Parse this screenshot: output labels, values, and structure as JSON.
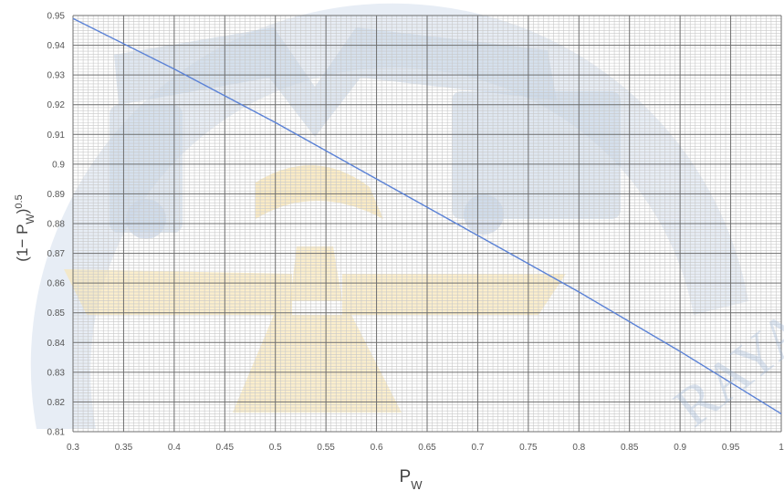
{
  "chart_data": {
    "type": "line",
    "title": "",
    "xlabel": {
      "base": "P",
      "sub": "W"
    },
    "ylabel": {
      "pre": "(1− P",
      "sub": "W",
      "post": ")",
      "sup": "0.5"
    },
    "xlim": [
      0.3,
      1.0
    ],
    "ylim": [
      0.81,
      0.95
    ],
    "grid": true,
    "x_ticks": [
      "0.3",
      "0.35",
      "0.4",
      "0.45",
      "0.5",
      "0.55",
      "0.6",
      "0.65",
      "0.7",
      "0.75",
      "0.8",
      "0.85",
      "0.9",
      "0.95",
      "1"
    ],
    "y_ticks": [
      "0.95",
      "0.94",
      "0.93",
      "0.92",
      "0.91",
      "0.9",
      "0.89",
      "0.88",
      "0.87",
      "0.86",
      "0.85",
      "0.84",
      "0.83",
      "0.82",
      "0.81"
    ],
    "series": [
      {
        "x": [
          0.3,
          0.4,
          0.5,
          0.6,
          0.7,
          0.8,
          0.9,
          1.0
        ],
        "y": [
          0.949,
          0.932,
          0.914,
          0.895,
          0.876,
          0.857,
          0.837,
          0.816
        ]
      }
    ]
  },
  "colors": {
    "line": "#5b82d6",
    "major_grid": "#6f6f6f",
    "minor_grid": "#c8c8c8",
    "watermark_blue": "#9fb7d6",
    "watermark_gold": "#f2d27a"
  },
  "watermark": {
    "icon": "university-logo-watermark",
    "text": "RAYA"
  }
}
